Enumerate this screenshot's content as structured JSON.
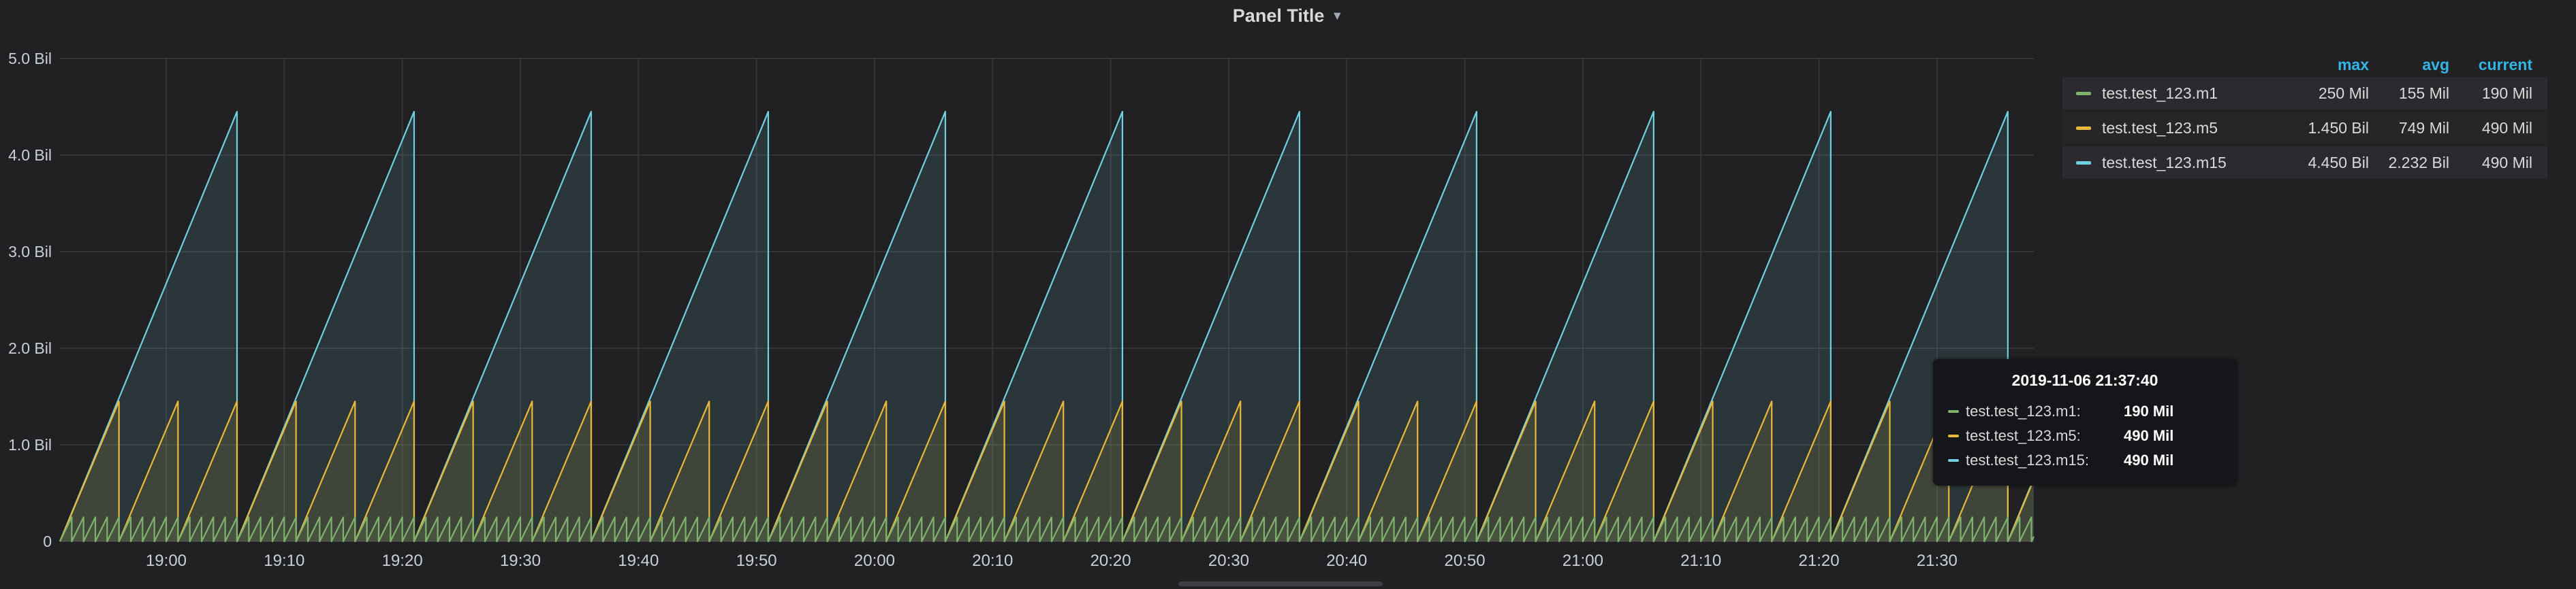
{
  "panel": {
    "title": "Panel Title"
  },
  "chart_data": {
    "type": "area",
    "ylim": [
      0,
      5000000000
    ],
    "y_ticks": [
      {
        "value": 0,
        "label": "0"
      },
      {
        "value": 1000000000,
        "label": "1.0 Bil"
      },
      {
        "value": 2000000000,
        "label": "2.0 Bil"
      },
      {
        "value": 3000000000,
        "label": "3.0 Bil"
      },
      {
        "value": 4000000000,
        "label": "4.0 Bil"
      },
      {
        "value": 5000000000,
        "label": "5.0 Bil"
      }
    ],
    "x_range_minutes": [
      1131.0,
      1298.2
    ],
    "x_ticks": [
      {
        "value": 1140,
        "label": "19:00"
      },
      {
        "value": 1150,
        "label": "19:10"
      },
      {
        "value": 1160,
        "label": "19:20"
      },
      {
        "value": 1170,
        "label": "19:30"
      },
      {
        "value": 1180,
        "label": "19:40"
      },
      {
        "value": 1190,
        "label": "19:50"
      },
      {
        "value": 1200,
        "label": "20:00"
      },
      {
        "value": 1210,
        "label": "20:10"
      },
      {
        "value": 1220,
        "label": "20:20"
      },
      {
        "value": 1230,
        "label": "20:30"
      },
      {
        "value": 1240,
        "label": "20:40"
      },
      {
        "value": 1250,
        "label": "20:50"
      },
      {
        "value": 1260,
        "label": "21:00"
      },
      {
        "value": 1270,
        "label": "21:10"
      },
      {
        "value": 1280,
        "label": "21:20"
      },
      {
        "value": 1290,
        "label": "21:30"
      }
    ],
    "series": [
      {
        "name": "test.test_123.m1",
        "color": "#7eb26d",
        "shape": "sawtooth",
        "start": 1131.0,
        "period": 1.0,
        "peak": 250000000
      },
      {
        "name": "test.test_123.m5",
        "color": "#eab839",
        "shape": "sawtooth",
        "start": 1131.0,
        "period": 5.0,
        "peak": 1450000000
      },
      {
        "name": "test.test_123.m15",
        "color": "#6ed0e0",
        "shape": "sawtooth",
        "start": 1131.0,
        "period": 15.0,
        "peak": 4450000000
      }
    ]
  },
  "legend": {
    "headers": {
      "max": "max",
      "avg": "avg",
      "current": "current"
    },
    "rows": [
      {
        "name": "test.test_123.m1",
        "color": "#7eb26d",
        "max": "250 Mil",
        "avg": "155 Mil",
        "current": "190 Mil"
      },
      {
        "name": "test.test_123.m5",
        "color": "#eab839",
        "max": "1.450 Bil",
        "avg": "749 Mil",
        "current": "490 Mil"
      },
      {
        "name": "test.test_123.m15",
        "color": "#6ed0e0",
        "max": "4.450 Bil",
        "avg": "2.232 Bil",
        "current": "490 Mil"
      }
    ]
  },
  "tooltip": {
    "time": "2019-11-06 21:37:40",
    "rows": [
      {
        "name": "test.test_123.m1:",
        "color": "#7eb26d",
        "value": "190 Mil"
      },
      {
        "name": "test.test_123.m5:",
        "color": "#eab839",
        "value": "490 Mil"
      },
      {
        "name": "test.test_123.m15:",
        "color": "#6ed0e0",
        "value": "490 Mil"
      }
    ]
  }
}
